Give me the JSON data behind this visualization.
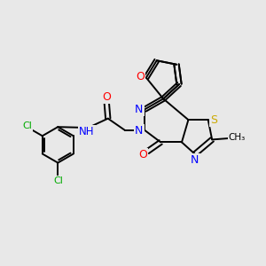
{
  "bg_color": "#e8e8e8",
  "bond_color": "#000000",
  "colors": {
    "N": "#0000ff",
    "O": "#ff0000",
    "S": "#ccaa00",
    "Cl": "#00aa00",
    "C": "#000000"
  },
  "lw": 1.4
}
